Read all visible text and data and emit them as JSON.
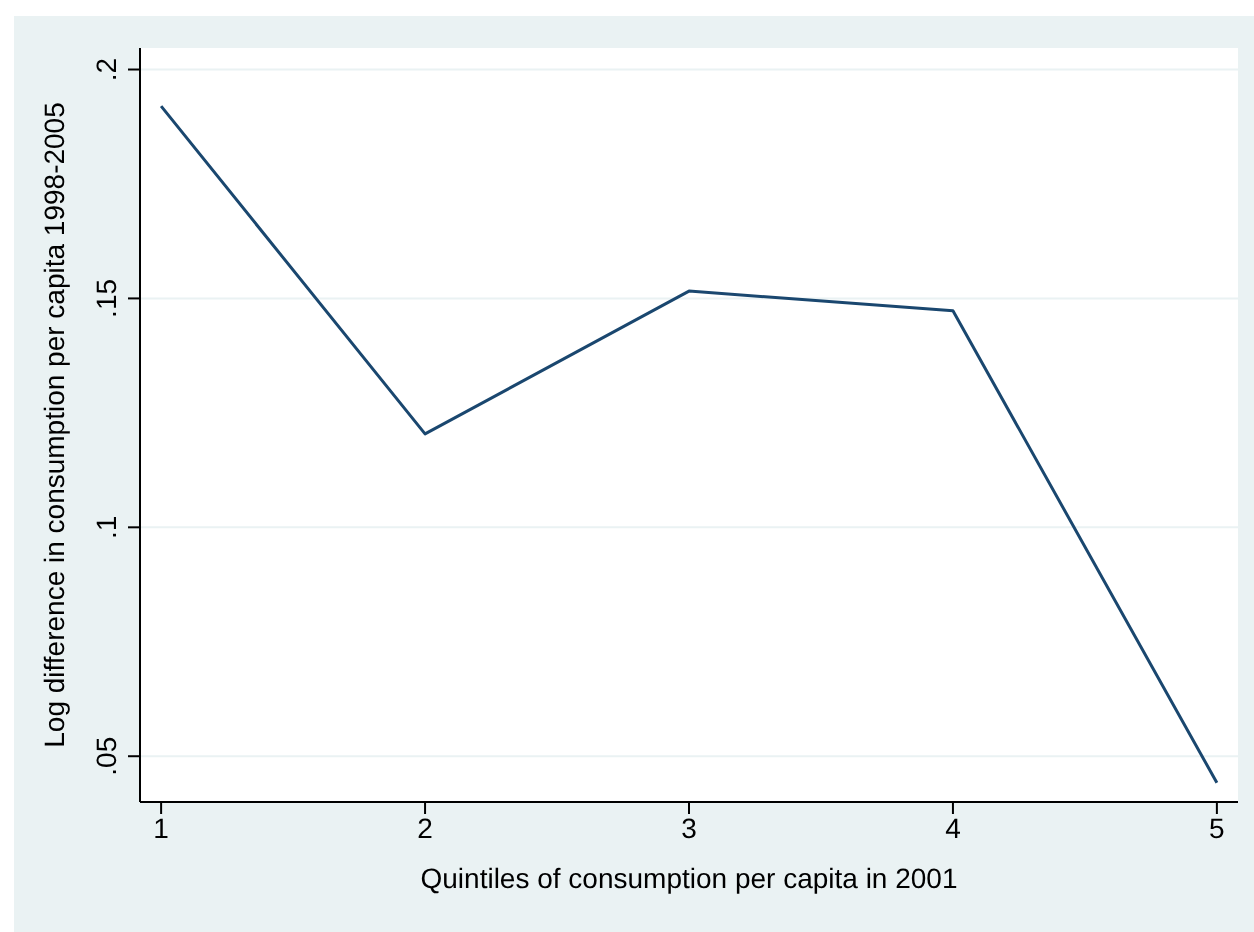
{
  "chart_data": {
    "type": "line",
    "xlabel": "Quintiles of consumption per capita in 2001",
    "ylabel": "Log difference in consumption per capita 1998-2005",
    "x": [
      1,
      2,
      3,
      4,
      5
    ],
    "series": [
      {
        "color": "#1a476f",
        "values": [
          0.192,
          0.1204,
          0.1516,
          0.1473,
          0.0442
        ]
      }
    ],
    "xlim": [
      0.92,
      5.08
    ],
    "xticks": [
      1,
      2,
      3,
      4,
      5
    ],
    "ylim": [
      0.04,
      0.2047
    ],
    "yticks": [
      {
        "value": 0.05,
        "label": ".05"
      },
      {
        "value": 0.1,
        "label": ".1"
      },
      {
        "value": 0.15,
        "label": ".15"
      },
      {
        "value": 0.2,
        "label": ".2"
      }
    ],
    "grid": "y",
    "marker": "none",
    "line_style": "solid",
    "legend": false
  }
}
